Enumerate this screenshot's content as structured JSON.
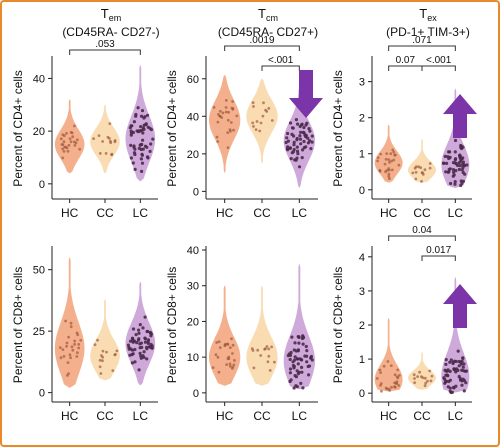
{
  "colors": {
    "HC": "#f2a278",
    "CC": "#f9d6a6",
    "LC": "#c79ad4",
    "point": "#4a2a4a",
    "arrow": "#7b35a8",
    "frame": "#e8892c"
  },
  "chart_data": [
    {
      "type": "violin",
      "title": "T",
      "title_sub": "em",
      "subtitle": "(CD45RA- CD27-)",
      "ylabel": "Percent of CD4+ cells",
      "categories": [
        "HC",
        "CC",
        "LC"
      ],
      "ylim": [
        -5,
        47
      ],
      "yticks": [
        0,
        20,
        40
      ],
      "series": [
        {
          "name": "HC",
          "median": 15,
          "range": [
            4,
            32
          ]
        },
        {
          "name": "CC",
          "median": 16,
          "range": [
            4,
            30
          ]
        },
        {
          "name": "LC",
          "median": 17,
          "range": [
            1,
            45
          ]
        }
      ],
      "brackets": [
        {
          "from": "HC",
          "to": "LC",
          "label": ".053"
        }
      ],
      "arrow": null
    },
    {
      "type": "violin",
      "title": "T",
      "title_sub": "cm",
      "subtitle": "(CD45RA- CD27+)",
      "ylabel": "Percent of CD4+ cells",
      "categories": [
        "HC",
        "CC",
        "LC"
      ],
      "ylim": [
        -3,
        70
      ],
      "yticks": [
        0,
        20,
        40,
        60
      ],
      "series": [
        {
          "name": "HC",
          "median": 38,
          "range": [
            10,
            62
          ]
        },
        {
          "name": "CC",
          "median": 40,
          "range": [
            15,
            60
          ]
        },
        {
          "name": "LC",
          "median": 27,
          "range": [
            2,
            55
          ]
        }
      ],
      "brackets": [
        {
          "from": "HC",
          "to": "LC",
          "label": ".0019"
        },
        {
          "from": "CC",
          "to": "LC",
          "label": "<.001"
        }
      ],
      "arrow": "down"
    },
    {
      "type": "violin",
      "title": "T",
      "title_sub": "ex",
      "subtitle": "(PD-1+ TIM-3+)",
      "ylabel": "Percent of CD4+ cells",
      "categories": [
        "HC",
        "CC",
        "LC"
      ],
      "ylim": [
        -0.2,
        3.6
      ],
      "yticks": [
        0,
        1,
        2,
        3
      ],
      "series": [
        {
          "name": "HC",
          "median": 0.75,
          "range": [
            0.2,
            1.8
          ]
        },
        {
          "name": "CC",
          "median": 0.55,
          "range": [
            0.2,
            1.4
          ]
        },
        {
          "name": "LC",
          "median": 0.7,
          "range": [
            0.05,
            2.8
          ]
        }
      ],
      "brackets": [
        {
          "from": "HC",
          "to": "LC",
          "label": ".071"
        },
        {
          "from": "HC",
          "to": "CC",
          "label": "0.07"
        },
        {
          "from": "CC",
          "to": "LC",
          "label": "<.001"
        }
      ],
      "arrow": "up"
    },
    {
      "type": "violin",
      "title": "",
      "title_sub": "",
      "subtitle": "",
      "ylabel": "Percent of CD8+ cells",
      "categories": [
        "HC",
        "CC",
        "LC"
      ],
      "ylim": [
        -3,
        58
      ],
      "yticks": [
        0,
        25,
        50
      ],
      "series": [
        {
          "name": "HC",
          "median": 18,
          "range": [
            2,
            55
          ]
        },
        {
          "name": "CC",
          "median": 15,
          "range": [
            5,
            38
          ]
        },
        {
          "name": "LC",
          "median": 20,
          "range": [
            3,
            45
          ]
        }
      ],
      "brackets": [],
      "arrow": null
    },
    {
      "type": "violin",
      "title": "",
      "title_sub": "",
      "subtitle": "",
      "ylabel": "Percent of CD8+ cells",
      "categories": [
        "HC",
        "CC",
        "LC"
      ],
      "ylim": [
        -2,
        40
      ],
      "yticks": [
        0,
        10,
        20,
        30,
        40
      ],
      "series": [
        {
          "name": "HC",
          "median": 10,
          "range": [
            2,
            30
          ]
        },
        {
          "name": "CC",
          "median": 10,
          "range": [
            2,
            30
          ]
        },
        {
          "name": "LC",
          "median": 9,
          "range": [
            1,
            36
          ]
        }
      ],
      "brackets": [],
      "arrow": null
    },
    {
      "type": "violin",
      "title": "",
      "title_sub": "",
      "subtitle": "",
      "ylabel": "Percent of CD8+ cells",
      "categories": [
        "HC",
        "CC",
        "LC"
      ],
      "ylim": [
        -0.2,
        4.2
      ],
      "yticks": [
        0,
        1,
        2,
        3,
        4
      ],
      "series": [
        {
          "name": "HC",
          "median": 0.4,
          "range": [
            0.05,
            2.2
          ]
        },
        {
          "name": "CC",
          "median": 0.45,
          "range": [
            0.1,
            1.2
          ]
        },
        {
          "name": "LC",
          "median": 0.5,
          "range": [
            0.02,
            3.4
          ]
        }
      ],
      "brackets": [
        {
          "from": "HC",
          "to": "LC",
          "label": "0.04"
        },
        {
          "from": "CC",
          "to": "LC",
          "label": "0.017"
        }
      ],
      "arrow": "up"
    }
  ]
}
